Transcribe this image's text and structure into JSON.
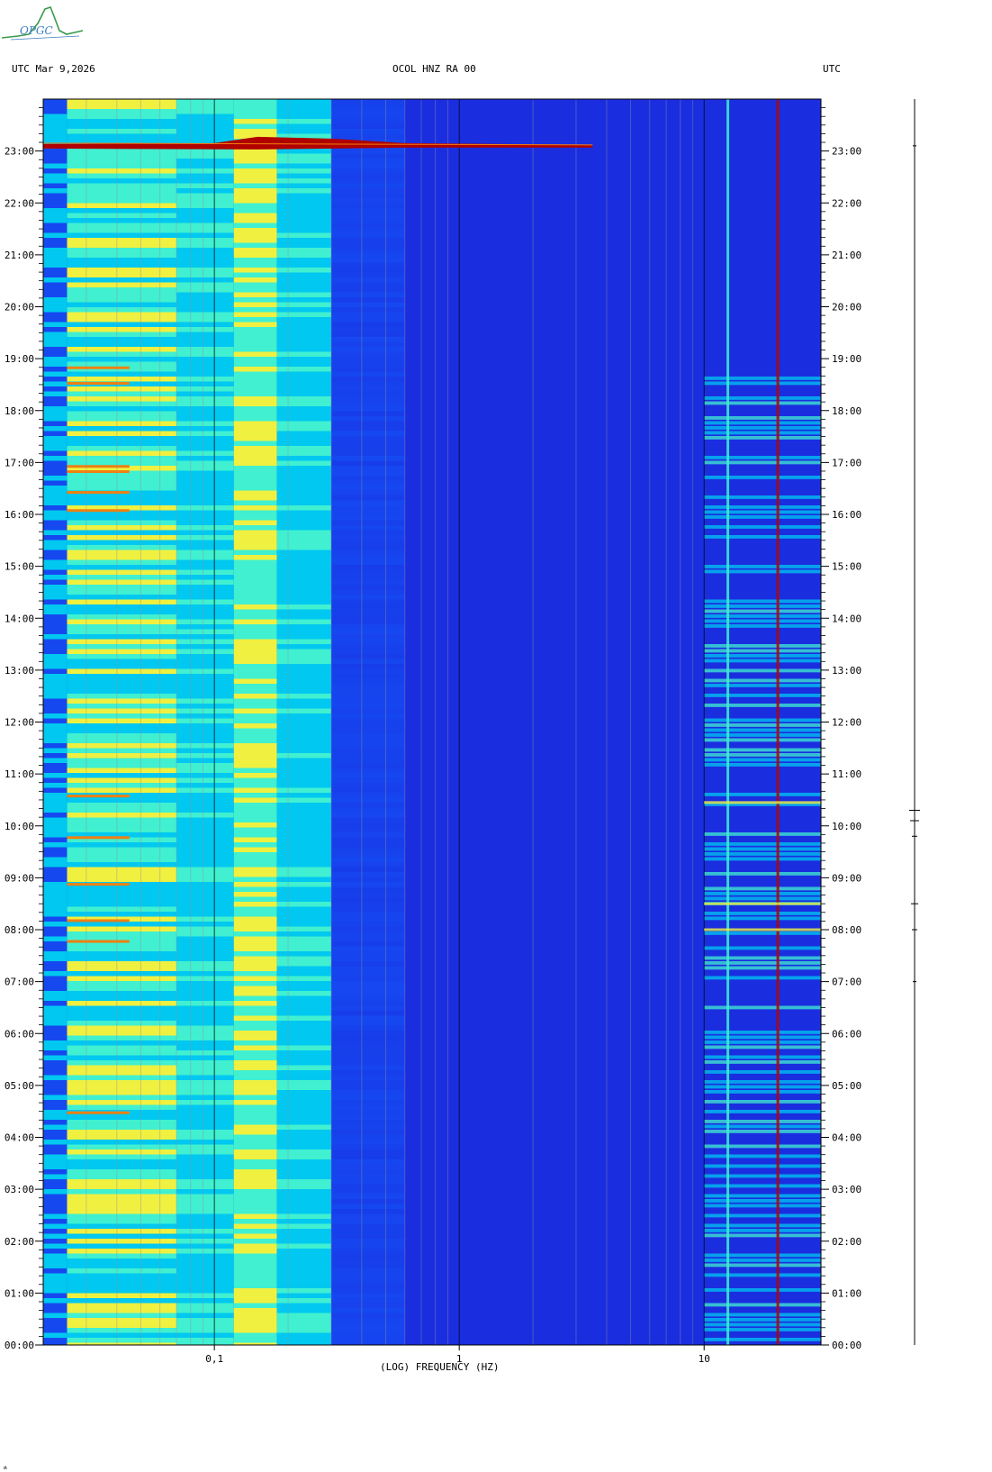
{
  "header": {
    "left_label": "UTC  Mar 9,2026",
    "center_label": "OCOL HNZ RA 00",
    "right_label": "UTC"
  },
  "logo": {
    "text": "OPGC",
    "icon": "seismograph-logo-icon",
    "color": "#3a7fbf"
  },
  "chart_data": {
    "type": "heatmap",
    "title": "OCOL HNZ RA 00",
    "xlabel": "(LOG) FREQUENCY (HZ)",
    "xscale": "log",
    "xlim": [
      0.02,
      30
    ],
    "x_ticks": [
      {
        "value": 0.1,
        "label": "0,1"
      },
      {
        "value": 1,
        "label": "1"
      },
      {
        "value": 10,
        "label": "10"
      }
    ],
    "ylabel": "UTC",
    "ylim_hours": [
      0,
      24
    ],
    "y_ticks": [
      "00:00",
      "01:00",
      "02:00",
      "03:00",
      "04:00",
      "05:00",
      "06:00",
      "07:00",
      "08:00",
      "09:00",
      "10:00",
      "11:00",
      "12:00",
      "13:00",
      "14:00",
      "15:00",
      "16:00",
      "17:00",
      "18:00",
      "19:00",
      "20:00",
      "21:00",
      "22:00",
      "23:00"
    ],
    "grid": true,
    "colormap": [
      "#0a10c8",
      "#1648f0",
      "#00c8f0",
      "#40f0d0",
      "#f0f040",
      "#f08010",
      "#b00000"
    ],
    "background_level_color": "#1a2ee0",
    "features": [
      {
        "name": "teleseismic event",
        "start_hour": 23.1,
        "freq_range": [
          0.02,
          3.5
        ],
        "strength": "high"
      },
      {
        "name": "microseism band",
        "freq_range": [
          0.12,
          0.18
        ],
        "strength": "moderate"
      },
      {
        "name": "low-frequency noise",
        "freq_range": [
          0.025,
          0.07
        ],
        "strength": "moderate"
      },
      {
        "name": "cultural noise",
        "freq_range": [
          10,
          30
        ],
        "hour_range": [
          0,
          19
        ],
        "strength": "variable"
      },
      {
        "name": "narrowband line",
        "freq": 12.5,
        "strength": "high"
      },
      {
        "name": "narrowband line",
        "freq": 20,
        "strength": "moderate"
      }
    ]
  }
}
